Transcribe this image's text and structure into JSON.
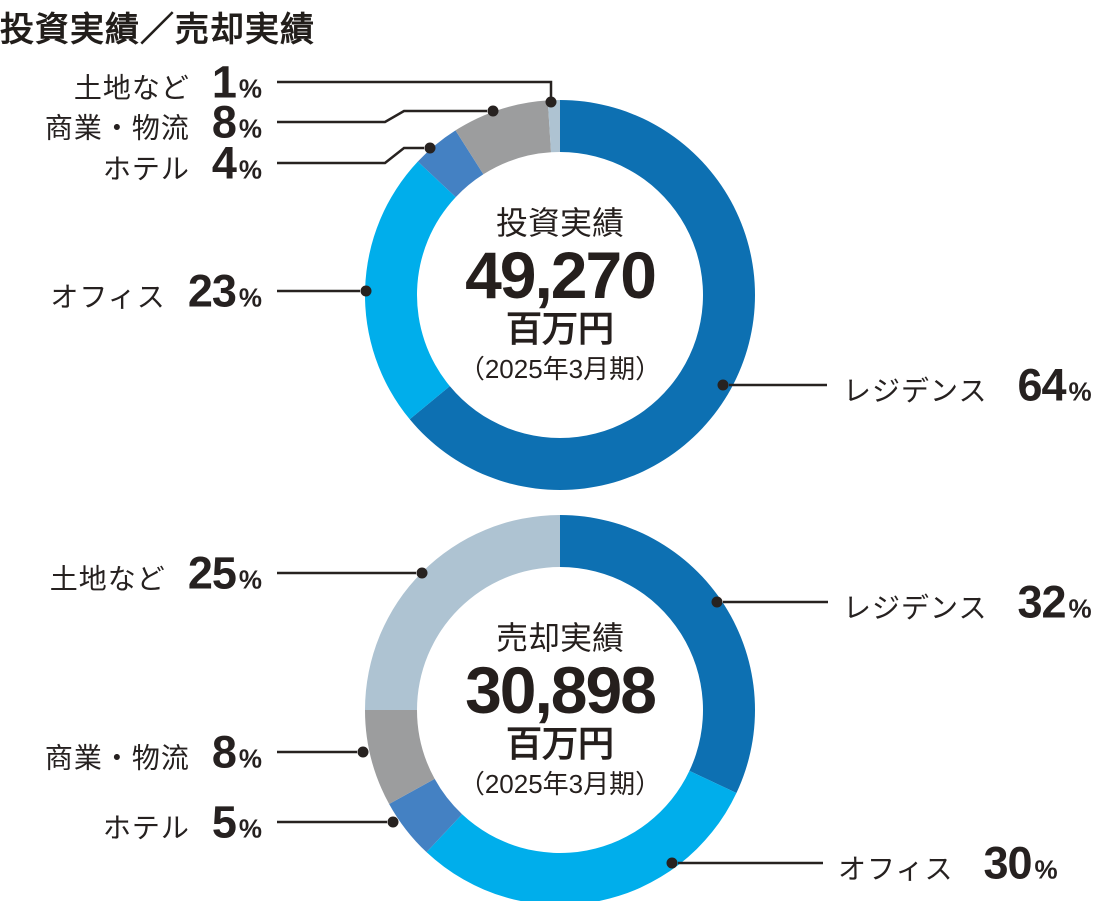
{
  "title": "投資実績／売却実績",
  "unit_percent": "%",
  "chart_data": [
    {
      "type": "donut",
      "start_angle_deg": 0,
      "direction": "clockwise",
      "center": {
        "label": "投資実績",
        "value": "49,270",
        "unit": "百万円",
        "period": "（2025年3月期）"
      },
      "segments": [
        {
          "key": "residence",
          "label": "レジデンス",
          "value": 64,
          "color": "#0d70b2"
        },
        {
          "key": "office",
          "label": "オフィス",
          "value": 23,
          "color": "#00aeeb"
        },
        {
          "key": "hotel",
          "label": "ホテル",
          "value": 4,
          "color": "#4481c3"
        },
        {
          "key": "commercial-logistics",
          "label": "商業・物流",
          "value": 8,
          "color": "#9c9d9e"
        },
        {
          "key": "land-etc",
          "label": "土地など",
          "value": 1,
          "color": "#aec3d2"
        }
      ]
    },
    {
      "type": "donut",
      "start_angle_deg": 0,
      "direction": "clockwise",
      "center": {
        "label": "売却実績",
        "value": "30,898",
        "unit": "百万円",
        "period": "（2025年3月期）"
      },
      "segments": [
        {
          "key": "residence",
          "label": "レジデンス",
          "value": 32,
          "color": "#0d70b2"
        },
        {
          "key": "office",
          "label": "オフィス",
          "value": 30,
          "color": "#00aeeb"
        },
        {
          "key": "hotel",
          "label": "ホテル",
          "value": 5,
          "color": "#4481c3"
        },
        {
          "key": "commercial-logistics",
          "label": "商業・物流",
          "value": 8,
          "color": "#9c9d9e"
        },
        {
          "key": "land-etc",
          "label": "土地など",
          "value": 25,
          "color": "#aec3d2"
        }
      ]
    }
  ]
}
